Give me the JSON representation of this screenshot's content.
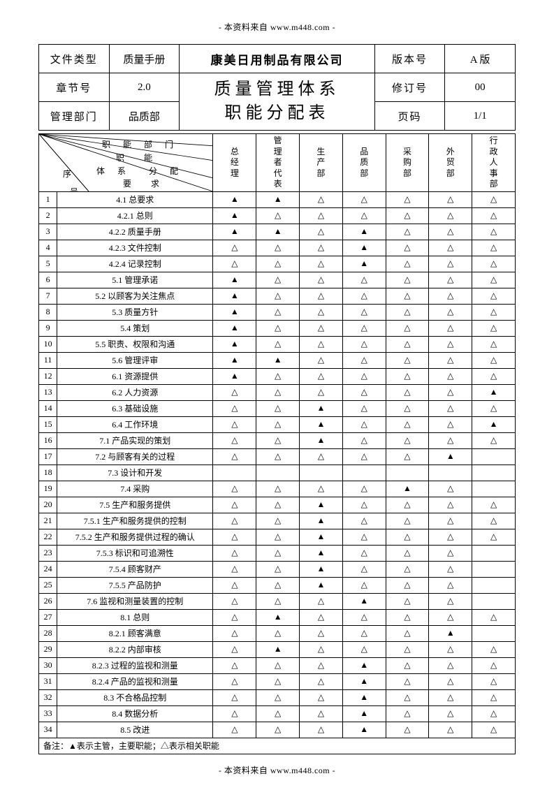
{
  "header_note": "- 本资料来自  www.m448.com -",
  "footer_note": "- 本资料来自  www.m448.com -",
  "meta": {
    "doc_type_label": "文件类型",
    "doc_type": "质量手册",
    "company": "康美日用制品有限公司",
    "version_label": "版本号",
    "version": "A 版",
    "chapter_label": "章节号",
    "chapter": "2.0",
    "title_line1": "质量管理体系",
    "title_line2": "职能分配表",
    "rev_label": "修订号",
    "rev": "00",
    "dept_label": "管理部门",
    "dept": "品质部",
    "page_label": "页码",
    "page": "1/1"
  },
  "diag": {
    "top": "职　能　部　门",
    "mid_upper": "职　能",
    "mid": "体　系　　分　配",
    "mid_lower": "要　求",
    "left": "序",
    "left_bottom": "号"
  },
  "departments": [
    "总经理",
    "管理者代表",
    "生产部",
    "品质部",
    "采购部",
    "外贸部",
    "行政人事部"
  ],
  "marks": {
    "primary": "▲",
    "related": "△",
    "empty": ""
  },
  "rows": [
    {
      "n": "1",
      "req": "4.1 总要求",
      "m": [
        "p",
        "p",
        "r",
        "r",
        "r",
        "r",
        "r"
      ]
    },
    {
      "n": "2",
      "req": "4.2.1 总则",
      "m": [
        "p",
        "r",
        "r",
        "r",
        "r",
        "r",
        "r"
      ]
    },
    {
      "n": "3",
      "req": "4.2.2 质量手册",
      "m": [
        "p",
        "p",
        "r",
        "p",
        "r",
        "r",
        "r"
      ]
    },
    {
      "n": "4",
      "req": "4.2.3 文件控制",
      "m": [
        "r",
        "r",
        "r",
        "p",
        "r",
        "r",
        "r"
      ]
    },
    {
      "n": "5",
      "req": "4.2.4 记录控制",
      "m": [
        "r",
        "r",
        "r",
        "p",
        "r",
        "r",
        "r"
      ]
    },
    {
      "n": "6",
      "req": "5.1 管理承诺",
      "m": [
        "p",
        "r",
        "r",
        "r",
        "r",
        "r",
        "r"
      ]
    },
    {
      "n": "7",
      "req": "5.2 以顾客为关注焦点",
      "m": [
        "p",
        "r",
        "r",
        "r",
        "r",
        "r",
        "r"
      ]
    },
    {
      "n": "8",
      "req": "5.3 质量方针",
      "m": [
        "p",
        "r",
        "r",
        "r",
        "r",
        "r",
        "r"
      ]
    },
    {
      "n": "9",
      "req": "5.4 策划",
      "m": [
        "p",
        "r",
        "r",
        "r",
        "r",
        "r",
        "r"
      ]
    },
    {
      "n": "10",
      "req": "5.5 职责、权限和沟通",
      "m": [
        "p",
        "r",
        "r",
        "r",
        "r",
        "r",
        "r"
      ]
    },
    {
      "n": "11",
      "req": "5.6 管理评审",
      "m": [
        "p",
        "p",
        "r",
        "r",
        "r",
        "r",
        "r"
      ]
    },
    {
      "n": "12",
      "req": "6.1 资源提供",
      "m": [
        "p",
        "r",
        "r",
        "r",
        "r",
        "r",
        "r"
      ]
    },
    {
      "n": "13",
      "req": "6.2 人力资源",
      "m": [
        "r",
        "r",
        "r",
        "r",
        "r",
        "r",
        "p"
      ]
    },
    {
      "n": "14",
      "req": "6.3 基础设施",
      "m": [
        "r",
        "r",
        "p",
        "r",
        "r",
        "r",
        "r"
      ]
    },
    {
      "n": "15",
      "req": "6.4 工作环境",
      "m": [
        "r",
        "r",
        "p",
        "r",
        "r",
        "r",
        "p"
      ]
    },
    {
      "n": "16",
      "req": "7.1 产品实现的策划",
      "m": [
        "r",
        "r",
        "p",
        "r",
        "r",
        "r",
        "r"
      ]
    },
    {
      "n": "17",
      "req": "7.2 与顾客有关的过程",
      "m": [
        "r",
        "r",
        "r",
        "r",
        "r",
        "p",
        "e"
      ]
    },
    {
      "n": "18",
      "req": "7.3 设计和开发",
      "m": [
        "e",
        "e",
        "e",
        "e",
        "e",
        "e",
        "e"
      ]
    },
    {
      "n": "19",
      "req": "7.4 采购",
      "m": [
        "r",
        "r",
        "r",
        "r",
        "p",
        "r",
        "e"
      ]
    },
    {
      "n": "20",
      "req": "7.5 生产和服务提供",
      "m": [
        "r",
        "r",
        "p",
        "r",
        "r",
        "r",
        "r"
      ]
    },
    {
      "n": "21",
      "req": "7.5.1 生产和服务提供的控制",
      "m": [
        "r",
        "r",
        "p",
        "r",
        "r",
        "r",
        "r"
      ]
    },
    {
      "n": "22",
      "req": "7.5.2 生产和服务提供过程的确认",
      "m": [
        "r",
        "r",
        "p",
        "r",
        "r",
        "r",
        "r"
      ]
    },
    {
      "n": "23",
      "req": "7.5.3 标识和可追溯性",
      "m": [
        "r",
        "r",
        "p",
        "r",
        "r",
        "r",
        "e"
      ]
    },
    {
      "n": "24",
      "req": "7.5.4 顾客财产",
      "m": [
        "r",
        "r",
        "p",
        "r",
        "r",
        "r",
        "e"
      ]
    },
    {
      "n": "25",
      "req": "7.5.5 产品防护",
      "m": [
        "r",
        "r",
        "p",
        "r",
        "r",
        "r",
        "e"
      ]
    },
    {
      "n": "26",
      "req": "7.6 监视和测量装置的控制",
      "m": [
        "r",
        "r",
        "r",
        "p",
        "r",
        "r",
        "e"
      ]
    },
    {
      "n": "27",
      "req": "8.1 总则",
      "m": [
        "r",
        "p",
        "r",
        "r",
        "r",
        "r",
        "r"
      ]
    },
    {
      "n": "28",
      "req": "8.2.1 顾客满意",
      "m": [
        "r",
        "r",
        "r",
        "r",
        "r",
        "p",
        "e"
      ]
    },
    {
      "n": "29",
      "req": "8.2.2 内部审核",
      "m": [
        "r",
        "p",
        "r",
        "r",
        "r",
        "r",
        "r"
      ]
    },
    {
      "n": "30",
      "req": "8.2.3 过程的监视和测量",
      "m": [
        "r",
        "r",
        "r",
        "p",
        "r",
        "r",
        "r"
      ]
    },
    {
      "n": "31",
      "req": "8.2.4 产品的监视和测量",
      "m": [
        "r",
        "r",
        "r",
        "p",
        "r",
        "r",
        "r"
      ]
    },
    {
      "n": "32",
      "req": "8.3 不合格品控制",
      "m": [
        "r",
        "r",
        "r",
        "p",
        "r",
        "r",
        "r"
      ]
    },
    {
      "n": "33",
      "req": "8.4 数据分析",
      "m": [
        "r",
        "r",
        "r",
        "p",
        "r",
        "r",
        "r"
      ]
    },
    {
      "n": "34",
      "req": "8.5 改进",
      "m": [
        "r",
        "r",
        "r",
        "p",
        "r",
        "r",
        "r"
      ]
    }
  ],
  "note": "备注：▲表示主管，主要职能；△表示相关职能"
}
